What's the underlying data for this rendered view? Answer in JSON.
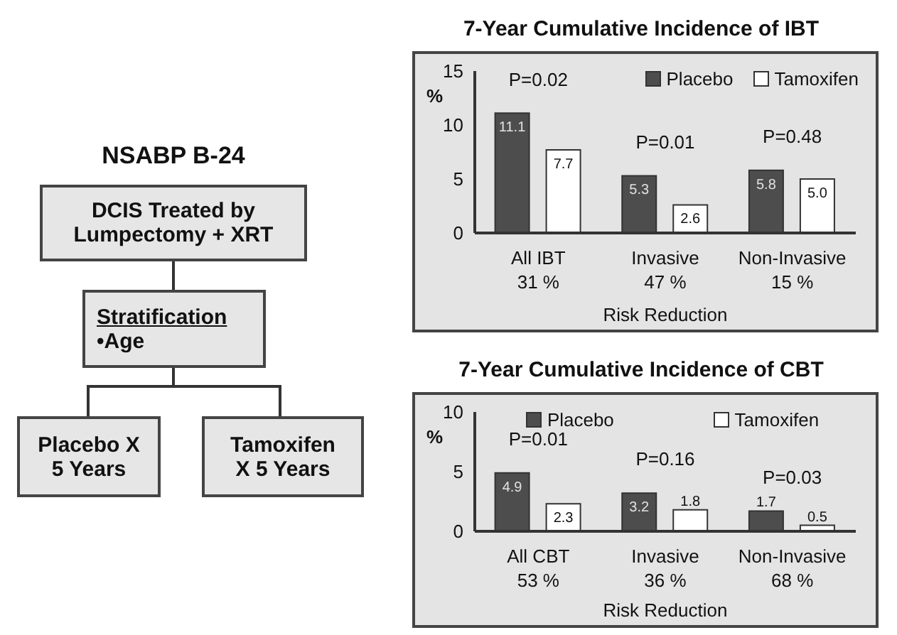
{
  "chart_data": [
    {
      "type": "other",
      "title": "NSABP B-24",
      "annotations": [
        "DCIS Treated by Lumpectomy + XRT",
        "Stratification",
        "•Age",
        "Placebo X 5 Years",
        "Tamoxifen X 5 Years"
      ]
    },
    {
      "type": "bar",
      "title": "7-Year Cumulative Incidence of IBT",
      "ylabel": "%",
      "xlabel": "Risk Reduction",
      "categories": [
        "All IBT",
        "Invasive",
        "Non-Invasive"
      ],
      "series": [
        {
          "name": "Placebo",
          "color": "#4d4d4d",
          "values": [
            11.1,
            5.3,
            5.8
          ],
          "value_labels": [
            "11.1",
            "5.3",
            "5.8"
          ]
        },
        {
          "name": "Tamoxifen",
          "color": "#ffffff",
          "values": [
            7.7,
            2.6,
            5.0
          ],
          "value_labels": [
            "7.7",
            "2.6",
            "5.0"
          ]
        }
      ],
      "ylim": [
        0,
        15
      ],
      "yticks": [
        0,
        5,
        10,
        15
      ],
      "legend": "top right",
      "annotations": [
        "P=0.02",
        "P=0.01",
        "P=0.48",
        "31 %",
        "47 %",
        "15 %"
      ]
    },
    {
      "type": "bar",
      "title": "7-Year Cumulative Incidence of CBT",
      "ylabel": "%",
      "xlabel": "Risk Reduction",
      "categories": [
        "All CBT",
        "Invasive",
        "Non-Invasive"
      ],
      "series": [
        {
          "name": "Placebo",
          "color": "#4d4d4d",
          "values": [
            4.9,
            3.2,
            1.7
          ]
        },
        {
          "name": "Tamoxifen",
          "color": "#ffffff",
          "values": [
            2.3,
            1.8,
            0.5
          ]
        }
      ],
      "ylim": [
        0,
        10
      ],
      "yticks": [
        0,
        5,
        10
      ],
      "data_labels": true,
      "legend": "top",
      "annotations": [
        "P=0.01",
        "P=0.16",
        "P=0.03",
        "53 %",
        "36 %",
        "68 %"
      ]
    }
  ]
}
